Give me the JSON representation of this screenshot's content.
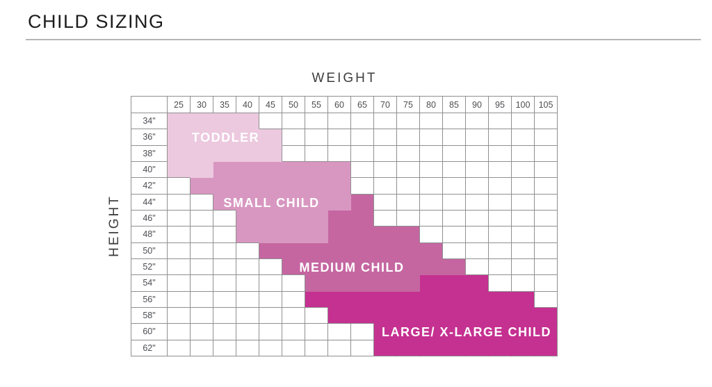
{
  "page": {
    "title": "CHILD SIZING"
  },
  "chart_data": {
    "type": "heatmap",
    "title": "CHILD SIZING",
    "xlabel": "WEIGHT",
    "ylabel": "HEIGHT",
    "x_unit_hint": "lbs",
    "weights": [
      "25",
      "30",
      "35",
      "40",
      "45",
      "50",
      "55",
      "60",
      "65",
      "70",
      "75",
      "80",
      "85",
      "90",
      "95",
      "100",
      "105"
    ],
    "heights": [
      "34\"",
      "36\"",
      "38\"",
      "40\"",
      "42\"",
      "44\"",
      "46\"",
      "48\"",
      "50\"",
      "52\"",
      "54\"",
      "56\"",
      "58\"",
      "60\"",
      "62\""
    ],
    "grid_line_color": "#8f8f8f",
    "label_text_color": "#ffffff",
    "regions": [
      {
        "label": "TODDLER",
        "color": "#ecc9df",
        "label_row": "36\"",
        "label_cols": [
          "25",
          "45"
        ],
        "rows": {
          "34\"": [
            "25",
            "40"
          ],
          "36\"": [
            "25",
            "45"
          ],
          "38\"": [
            "25",
            "45"
          ],
          "40\"": [
            "25",
            "30"
          ]
        }
      },
      {
        "label": "SMALL CHILD",
        "color": "#d897c1",
        "label_row": "44\"",
        "label_cols": [
          "35",
          "55"
        ],
        "rows": {
          "40\"": [
            "35",
            "60"
          ],
          "42\"": [
            "30",
            "60"
          ],
          "44\"": [
            "35",
            "60"
          ],
          "46\"": [
            "40",
            "55"
          ],
          "48\"": [
            "40",
            "55"
          ]
        }
      },
      {
        "label": "MEDIUM CHILD",
        "color": "#c566a1",
        "label_row": "52\"",
        "label_cols": [
          "45",
          "80"
        ],
        "rows": {
          "44\"": [
            "65",
            "65"
          ],
          "46\"": [
            "60",
            "65"
          ],
          "48\"": [
            "60",
            "75"
          ],
          "50\"": [
            "45",
            "80"
          ],
          "52\"": [
            "50",
            "85"
          ],
          "54\"": [
            "55",
            "75"
          ]
        }
      },
      {
        "label": "LARGE/ X-LARGE CHILD",
        "color": "#c53190",
        "label_row": "60\"",
        "label_cols": [
          "70",
          "105"
        ],
        "rows": {
          "54\"": [
            "80",
            "90"
          ],
          "56\"": [
            "55",
            "100"
          ],
          "58\"": [
            "60",
            "105"
          ],
          "60\"": [
            "70",
            "105"
          ],
          "62\"": [
            "70",
            "105"
          ]
        }
      }
    ]
  }
}
